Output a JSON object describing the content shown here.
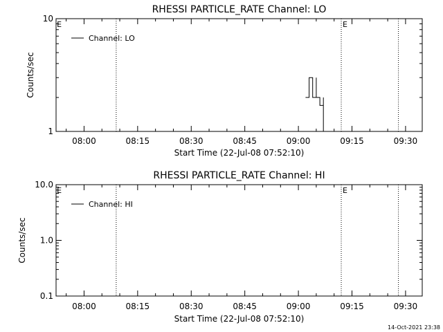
{
  "chart_data": [
    {
      "type": "line",
      "title": "RHESSI PARTICLE_RATE Channel: LO",
      "xlabel": "Start Time (22-Jul-08 07:52:10)",
      "ylabel": "Counts/sec",
      "yscale": "log",
      "ylim": [
        1,
        10
      ],
      "xlim_minutes_since_start": [
        0,
        102.5
      ],
      "ytick_labels": [
        {
          "value": 1,
          "label": "1"
        },
        {
          "value": 10,
          "label": "10"
        }
      ],
      "xtick_labels": [
        "08:00",
        "08:15",
        "08:30",
        "08:45",
        "09:00",
        "09:15",
        "09:30"
      ],
      "xtick_times": [
        "08:00",
        "08:15",
        "08:30",
        "08:45",
        "09:00",
        "09:15",
        "09:30"
      ],
      "legend": {
        "placement": "top-left",
        "entries": [
          "Channel: LO"
        ]
      },
      "grid": false,
      "markers": [
        {
          "time": "07:52",
          "label": "E",
          "line": false
        },
        {
          "time": "08:09",
          "label": "",
          "line": true
        },
        {
          "time": "09:12",
          "label": "E",
          "line": true
        },
        {
          "time": "09:28",
          "label": "",
          "line": true
        }
      ],
      "series": [
        {
          "name": "Channel: LO",
          "points": [
            {
              "time": "09:02",
              "value": 2.0
            },
            {
              "time": "09:03",
              "value": 2.0
            },
            {
              "time": "09:03",
              "value": 3.0
            },
            {
              "time": "09:04",
              "value": 3.0
            },
            {
              "time": "09:04",
              "value": 2.0
            },
            {
              "time": "09:05",
              "value": 2.0
            },
            {
              "time": "09:05",
              "value": 3.0
            },
            {
              "time": "09:05",
              "value": 3.0
            },
            {
              "time": "09:05",
              "value": 2.0
            },
            {
              "time": "09:06",
              "value": 2.0
            },
            {
              "time": "09:06",
              "value": 1.7
            },
            {
              "time": "09:07",
              "value": 1.7
            },
            {
              "time": "09:07",
              "value": 2.0
            },
            {
              "time": "09:07",
              "value": 2.0
            },
            {
              "time": "09:07",
              "value": 1.0
            }
          ]
        }
      ]
    },
    {
      "type": "line",
      "title": "RHESSI PARTICLE_RATE Channel: HI",
      "xlabel": "Start Time (22-Jul-08 07:52:10)",
      "ylabel": "Counts/sec",
      "yscale": "log",
      "ylim": [
        0.1,
        10
      ],
      "xlim_minutes_since_start": [
        0,
        102.5
      ],
      "ytick_labels": [
        {
          "value": 0.1,
          "label": "0.1"
        },
        {
          "value": 1,
          "label": "1.0"
        },
        {
          "value": 10,
          "label": "10.0"
        }
      ],
      "xtick_labels": [
        "08:00",
        "08:15",
        "08:30",
        "08:45",
        "09:00",
        "09:15",
        "09:30"
      ],
      "xtick_times": [
        "08:00",
        "08:15",
        "08:30",
        "08:45",
        "09:00",
        "09:15",
        "09:30"
      ],
      "legend": {
        "placement": "top-left",
        "entries": [
          "Channel: HI"
        ]
      },
      "grid": false,
      "markers": [
        {
          "time": "07:52",
          "label": "E",
          "line": false
        },
        {
          "time": "08:09",
          "label": "",
          "line": true
        },
        {
          "time": "09:12",
          "label": "E",
          "line": true
        },
        {
          "time": "09:28",
          "label": "",
          "line": true
        }
      ],
      "series": [
        {
          "name": "Channel: HI",
          "points": []
        }
      ]
    }
  ],
  "footer": {
    "timestamp": "14-Oct-2021 23:38"
  }
}
